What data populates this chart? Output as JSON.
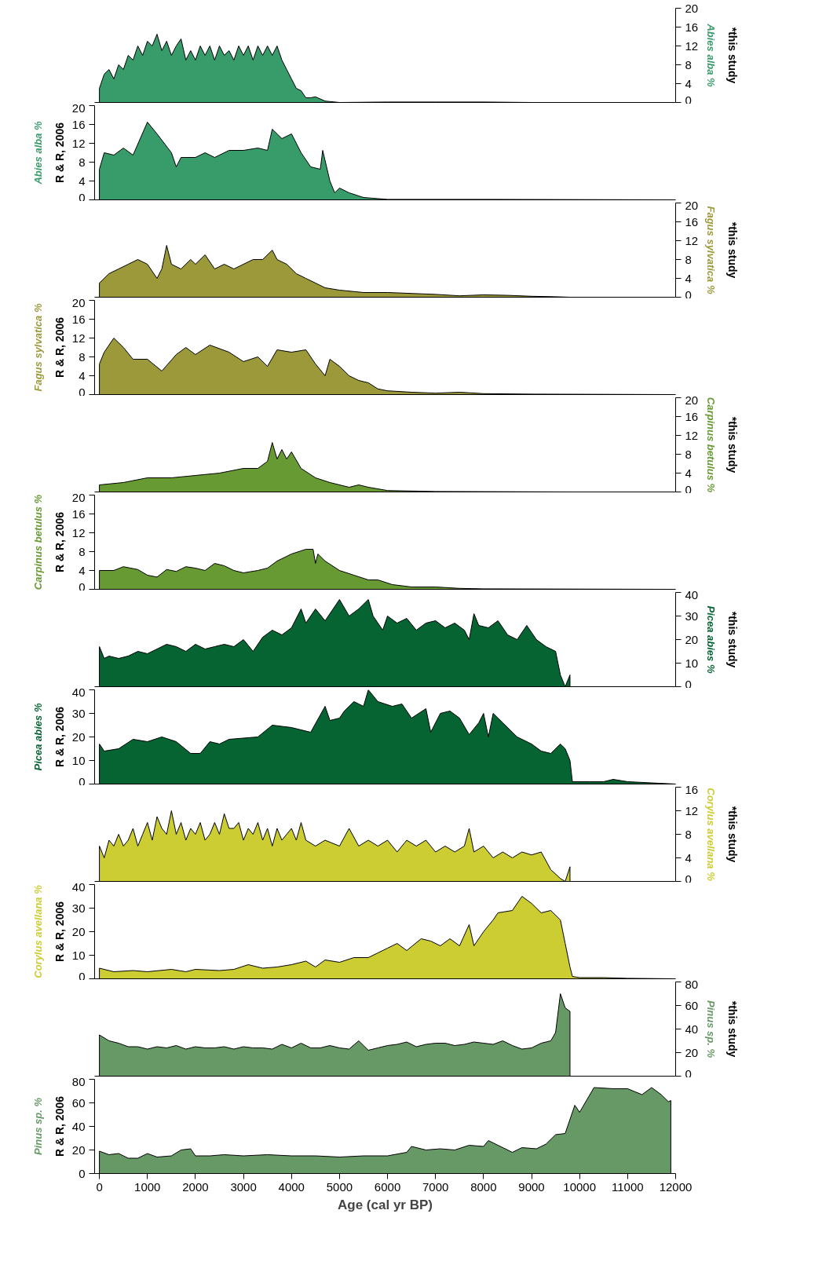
{
  "chart_data": [
    {
      "type": "area",
      "xlim": [
        -100,
        12000
      ],
      "tick_labels": "y",
      "y2lim": [
        0,
        20
      ],
      "y2ticks": [
        0,
        4,
        8,
        12,
        16,
        20
      ],
      "y2label": "Abies alba %",
      "annotations": [
        "*this study"
      ],
      "series": [
        {
          "axis": "y2",
          "color": "#389b6a",
          "x": [
            0,
            100,
            200,
            300,
            400,
            500,
            600,
            700,
            800,
            900,
            1000,
            1100,
            1200,
            1300,
            1400,
            1500,
            1600,
            1700,
            1800,
            1900,
            2000,
            2100,
            2200,
            2300,
            2400,
            2500,
            2600,
            2700,
            2800,
            2900,
            3000,
            3100,
            3200,
            3300,
            3400,
            3500,
            3600,
            3700,
            3800,
            3900,
            4000,
            4100,
            4200,
            4300,
            4400,
            4500,
            4700,
            5000,
            6000,
            7000,
            8000,
            9000,
            9800
          ],
          "values": [
            3,
            6,
            7,
            5,
            8,
            7,
            10,
            9,
            12,
            10,
            13,
            12,
            14.5,
            11,
            13,
            10,
            12,
            13.5,
            9,
            11,
            9,
            12,
            10,
            12,
            9,
            12,
            10,
            11,
            9,
            12,
            10,
            12,
            9,
            12,
            10,
            12,
            10,
            12,
            9,
            7,
            5,
            3,
            2.5,
            1,
            1,
            1.2,
            0.3,
            0,
            0.1,
            0.1,
            0.1,
            0,
            0
          ]
        }
      ]
    },
    {
      "type": "area",
      "xlim": [
        -100,
        12000
      ],
      "tick_labels": "y",
      "ylim": [
        0,
        20
      ],
      "yticks": [
        0,
        4,
        8,
        12,
        16,
        20
      ],
      "ylabel": "Abies alba %",
      "annotations": [
        "R & R, 2006"
      ],
      "series": [
        {
          "color": "#389b6a",
          "x": [
            0,
            100,
            300,
            500,
            700,
            1000,
            1200,
            1500,
            1600,
            1700,
            2000,
            2200,
            2400,
            2700,
            3000,
            3300,
            3500,
            3600,
            3800,
            4000,
            4200,
            4400,
            4600,
            4650,
            4800,
            4900,
            5000,
            5200,
            5500,
            6000,
            8000,
            12000
          ],
          "values": [
            6.5,
            10,
            9.5,
            11,
            9.5,
            16.5,
            14,
            10,
            7,
            9,
            9,
            10,
            9,
            10.5,
            10.5,
            11,
            10.5,
            15,
            13,
            14,
            10,
            7,
            6.5,
            10.5,
            4,
            1.5,
            2.5,
            1.5,
            0.5,
            0.1,
            0.1,
            0
          ]
        }
      ]
    },
    {
      "type": "area",
      "xlim": [
        -100,
        12000
      ],
      "tick_labels": "y",
      "y2lim": [
        0,
        20
      ],
      "y2ticks": [
        0,
        4,
        8,
        12,
        16,
        20
      ],
      "y2label": "Fagus sylvatica %",
      "annotations": [
        "*this study"
      ],
      "series": [
        {
          "axis": "y2",
          "color": "#9b993a",
          "x": [
            0,
            200,
            400,
            600,
            800,
            1000,
            1200,
            1300,
            1400,
            1500,
            1700,
            1900,
            2000,
            2200,
            2400,
            2600,
            2800,
            3000,
            3200,
            3400,
            3600,
            3700,
            3900,
            4100,
            4300,
            4500,
            4700,
            5000,
            5500,
            6000,
            6500,
            7000,
            7500,
            8000,
            8500,
            9000,
            9500,
            9800
          ],
          "values": [
            3,
            5,
            6,
            7,
            8,
            7,
            4,
            6,
            11,
            7,
            6,
            8,
            7,
            9,
            6,
            7,
            6,
            7,
            8,
            8,
            10,
            8,
            7,
            5,
            4,
            3,
            2,
            1.5,
            1,
            1,
            0.8,
            0.6,
            0.3,
            0.5,
            0.4,
            0.2,
            0.1,
            0
          ]
        }
      ]
    },
    {
      "type": "area",
      "xlim": [
        -100,
        12000
      ],
      "tick_labels": "y",
      "ylim": [
        0,
        20
      ],
      "yticks": [
        0,
        4,
        8,
        12,
        16,
        20
      ],
      "ylabel": "Fagus sylvatica %",
      "annotations": [
        "R & R, 2006"
      ],
      "series": [
        {
          "color": "#9b993a",
          "x": [
            0,
            100,
            300,
            500,
            700,
            1000,
            1300,
            1600,
            1800,
            2000,
            2300,
            2700,
            3000,
            3300,
            3500,
            3700,
            4000,
            4300,
            4500,
            4700,
            4800,
            5000,
            5200,
            5400,
            5600,
            5800,
            6000,
            6500,
            7000,
            7500,
            8000,
            9000,
            12000
          ],
          "values": [
            6.5,
            9,
            12,
            10,
            7.5,
            7.5,
            5,
            8.5,
            10,
            8.5,
            10.5,
            9,
            7,
            8,
            6,
            9.5,
            9,
            9.5,
            6.5,
            4,
            7.5,
            6,
            4,
            3,
            2.5,
            1.2,
            0.8,
            0.5,
            0.3,
            0.5,
            0.2,
            0.1,
            0
          ]
        }
      ]
    },
    {
      "type": "area",
      "xlim": [
        -100,
        12000
      ],
      "tick_labels": "y",
      "y2lim": [
        0,
        20
      ],
      "y2ticks": [
        0,
        4,
        8,
        12,
        16,
        20
      ],
      "y2label": "Carpinus betulus %",
      "annotations": [
        "*this study"
      ],
      "series": [
        {
          "axis": "y2",
          "color": "#679a33",
          "x": [
            0,
            500,
            1000,
            1500,
            2000,
            2500,
            3000,
            3300,
            3500,
            3600,
            3700,
            3800,
            3900,
            4000,
            4200,
            4500,
            4800,
            5200,
            5400,
            5600,
            6000,
            7000,
            9800
          ],
          "values": [
            1.5,
            2,
            3,
            3,
            3.5,
            4,
            5,
            5,
            6.5,
            10.5,
            7,
            9,
            7,
            8.5,
            5,
            3,
            2,
            1,
            1.5,
            1,
            0.3,
            0.1,
            0
          ]
        }
      ]
    },
    {
      "type": "area",
      "xlim": [
        -100,
        12000
      ],
      "tick_labels": "y",
      "ylim": [
        0,
        20
      ],
      "yticks": [
        0,
        4,
        8,
        12,
        16,
        20
      ],
      "ylabel": "Carpinus betulus %",
      "annotations": [
        "R & R, 2006"
      ],
      "series": [
        {
          "color": "#679a33",
          "x": [
            0,
            300,
            500,
            800,
            1000,
            1200,
            1400,
            1600,
            1800,
            2000,
            2200,
            2400,
            2600,
            2800,
            3000,
            3300,
            3500,
            3700,
            4000,
            4300,
            4450,
            4500,
            4550,
            4700,
            5000,
            5300,
            5600,
            5800,
            6100,
            6500,
            7000,
            7500,
            8000,
            12000
          ],
          "values": [
            4,
            4,
            4.8,
            4.2,
            3,
            2.6,
            4.2,
            3.8,
            4.8,
            4.5,
            4,
            5.5,
            5,
            4,
            3.5,
            4,
            4.5,
            6,
            7.5,
            8.5,
            8.5,
            5.5,
            7.5,
            6,
            4,
            3,
            2,
            2,
            1,
            0.5,
            0.5,
            0.2,
            0.1,
            0
          ]
        }
      ]
    },
    {
      "type": "area",
      "xlim": [
        -100,
        12000
      ],
      "tick_labels": "y",
      "y2lim": [
        0,
        40
      ],
      "y2ticks": [
        0,
        10,
        20,
        30,
        40
      ],
      "y2label": "Picea abies %",
      "annotations": [
        "*this study"
      ],
      "series": [
        {
          "axis": "y2",
          "color": "#066433",
          "x": [
            0,
            100,
            200,
            400,
            600,
            800,
            1000,
            1200,
            1400,
            1600,
            1800,
            2000,
            2200,
            2400,
            2600,
            2800,
            3000,
            3200,
            3400,
            3600,
            3800,
            4000,
            4200,
            4300,
            4500,
            4700,
            5000,
            5200,
            5400,
            5600,
            5700,
            5900,
            6000,
            6200,
            6400,
            6600,
            6800,
            7000,
            7200,
            7400,
            7600,
            7700,
            7800,
            7900,
            8100,
            8300,
            8500,
            8700,
            8900,
            9100,
            9300,
            9500,
            9600,
            9700,
            9800
          ],
          "values": [
            17,
            12,
            13,
            12,
            13,
            15,
            14,
            16,
            18,
            17,
            15,
            18,
            16,
            17,
            18,
            17,
            20,
            15,
            21,
            24,
            22,
            25,
            33,
            27,
            33,
            28,
            37,
            30,
            33,
            37,
            30,
            24,
            30,
            27,
            29,
            24,
            27,
            28,
            25,
            27,
            24,
            20,
            31,
            26,
            25,
            28,
            22,
            20,
            26,
            20,
            17,
            15,
            5,
            0,
            5
          ]
        }
      ]
    },
    {
      "type": "area",
      "xlim": [
        -100,
        12000
      ],
      "tick_labels": "y",
      "ylim": [
        0,
        40
      ],
      "yticks": [
        0,
        10,
        20,
        30,
        40
      ],
      "ylabel": "Picea abies %",
      "annotations": [
        "R & R, 2006"
      ],
      "series": [
        {
          "color": "#066433",
          "x": [
            0,
            100,
            400,
            700,
            1000,
            1300,
            1600,
            1900,
            2100,
            2300,
            2500,
            2700,
            3000,
            3300,
            3600,
            4000,
            4400,
            4700,
            4800,
            5000,
            5100,
            5300,
            5500,
            5600,
            5800,
            6100,
            6300,
            6500,
            6800,
            6900,
            7100,
            7300,
            7500,
            7700,
            7900,
            8000,
            8100,
            8200,
            8400,
            8700,
            9000,
            9200,
            9400,
            9600,
            9700,
            9800,
            9850,
            10200,
            10500,
            10700,
            11000,
            11500,
            12000
          ],
          "values": [
            17,
            14,
            15,
            19,
            18,
            20,
            18,
            13,
            13,
            18,
            17,
            19,
            19.5,
            20,
            25,
            24,
            22,
            33,
            27,
            28,
            31,
            35,
            33,
            40,
            35,
            33,
            34,
            28,
            32,
            22,
            30,
            31,
            28,
            21,
            26,
            30,
            20,
            30,
            26,
            20,
            17,
            14,
            13,
            17,
            15,
            10,
            1,
            1,
            1,
            2,
            1,
            0.5,
            0
          ]
        }
      ]
    },
    {
      "type": "area",
      "xlim": [
        -100,
        12000
      ],
      "tick_labels": "y",
      "y2lim": [
        0,
        16
      ],
      "y2ticks": [
        0,
        4,
        8,
        12,
        16
      ],
      "y2label": "Corylus avellana %",
      "annotations": [
        "*this study"
      ],
      "series": [
        {
          "axis": "y2",
          "color": "#cccc33",
          "x": [
            0,
            100,
            200,
            300,
            400,
            500,
            600,
            700,
            800,
            900,
            1000,
            1100,
            1200,
            1300,
            1400,
            1500,
            1600,
            1700,
            1800,
            1900,
            2000,
            2100,
            2200,
            2300,
            2400,
            2500,
            2600,
            2700,
            2800,
            2900,
            3000,
            3100,
            3200,
            3300,
            3400,
            3500,
            3600,
            3700,
            3800,
            3900,
            4000,
            4100,
            4200,
            4300,
            4500,
            4700,
            5000,
            5200,
            5400,
            5600,
            5800,
            6000,
            6200,
            6400,
            6600,
            6800,
            7000,
            7200,
            7400,
            7600,
            7700,
            7800,
            8000,
            8200,
            8400,
            8600,
            8800,
            9000,
            9200,
            9400,
            9600,
            9700,
            9800
          ],
          "values": [
            6,
            4,
            7,
            6,
            8,
            6,
            7,
            9,
            6,
            8,
            10,
            7,
            11,
            9,
            8,
            12,
            8,
            10,
            7,
            9,
            8,
            10,
            7,
            8,
            10,
            8,
            11.5,
            9,
            9,
            10,
            7,
            9,
            8,
            10,
            7,
            9,
            6,
            9,
            7,
            8,
            9,
            7,
            10,
            7,
            6,
            7,
            6,
            9,
            6,
            7,
            6,
            7,
            5,
            7,
            6,
            7,
            5,
            6,
            5,
            6,
            9,
            5,
            6,
            4,
            5,
            4,
            5,
            4.5,
            5,
            2,
            0.5,
            0,
            2.5
          ]
        }
      ]
    },
    {
      "type": "area",
      "xlim": [
        -100,
        12000
      ],
      "tick_labels": "y",
      "ylim": [
        0,
        40
      ],
      "yticks": [
        0,
        10,
        20,
        30,
        40
      ],
      "ylabel": "Corylus avellana %",
      "annotations": [
        "R & R, 2006"
      ],
      "series": [
        {
          "color": "#cccc33",
          "x": [
            0,
            300,
            700,
            1000,
            1500,
            1800,
            2000,
            2500,
            2800,
            3100,
            3400,
            3700,
            4000,
            4300,
            4500,
            4700,
            5000,
            5300,
            5600,
            5800,
            6000,
            6200,
            6400,
            6700,
            6900,
            7100,
            7300,
            7500,
            7700,
            7800,
            8000,
            8200,
            8300,
            8600,
            8800,
            9000,
            9200,
            9400,
            9600,
            9700,
            9800,
            9850,
            10000,
            10500,
            11000,
            12000
          ],
          "values": [
            4.5,
            3,
            3.5,
            3,
            4,
            3,
            4,
            3.5,
            4,
            6,
            4.5,
            5,
            6,
            7.5,
            5,
            8,
            7,
            9,
            9,
            11,
            13,
            15,
            12,
            17,
            16,
            14,
            17,
            14,
            23,
            14,
            20,
            25,
            28,
            29,
            35,
            32,
            28,
            29,
            25,
            15,
            5,
            1,
            0.5,
            0.5,
            0.2,
            0
          ]
        }
      ]
    },
    {
      "type": "area",
      "xlim": [
        -100,
        12000
      ],
      "tick_labels": "y",
      "y2lim": [
        0,
        80
      ],
      "y2ticks": [
        0,
        20,
        40,
        60,
        80
      ],
      "y2label": "Pinus sp. %",
      "annotations": [
        "*this study"
      ],
      "series": [
        {
          "axis": "y2",
          "color": "#669966",
          "x": [
            0,
            200,
            400,
            600,
            800,
            1000,
            1200,
            1400,
            1600,
            1800,
            2000,
            2200,
            2400,
            2600,
            2800,
            3000,
            3200,
            3400,
            3600,
            3800,
            4000,
            4200,
            4400,
            4600,
            4800,
            5000,
            5200,
            5400,
            5600,
            5800,
            6000,
            6200,
            6400,
            6600,
            6800,
            7000,
            7200,
            7400,
            7600,
            7800,
            8000,
            8200,
            8400,
            8600,
            8800,
            9000,
            9200,
            9400,
            9500,
            9600,
            9700,
            9800
          ],
          "values": [
            35,
            30,
            28,
            25,
            25,
            23,
            25,
            24,
            26,
            23,
            25,
            24,
            24,
            25,
            23,
            25,
            24,
            24,
            23,
            27,
            24,
            28,
            24,
            24,
            26,
            24,
            23,
            30,
            22,
            24,
            26,
            27,
            29,
            25,
            27,
            28,
            28,
            26,
            27,
            29,
            28,
            27,
            30,
            26,
            23,
            24,
            28,
            30,
            37,
            70,
            58,
            55
          ]
        }
      ]
    },
    {
      "type": "area",
      "xlim": [
        -100,
        12000
      ],
      "xticks": [
        0,
        1000,
        2000,
        3000,
        4000,
        5000,
        6000,
        7000,
        8000,
        9000,
        10000,
        11000,
        12000
      ],
      "xlabel": "Age (cal yr BP)",
      "ylim": [
        0,
        80
      ],
      "yticks": [
        0,
        20,
        40,
        60,
        80
      ],
      "ylabel": "Pinus sp. %",
      "annotations": [
        "R & R, 2006"
      ],
      "series": [
        {
          "color": "#669966",
          "x": [
            0,
            200,
            400,
            600,
            800,
            1000,
            1200,
            1500,
            1700,
            1900,
            2000,
            2300,
            2600,
            3000,
            3500,
            4000,
            4500,
            5000,
            5500,
            6000,
            6400,
            6500,
            6800,
            7100,
            7400,
            7700,
            8000,
            8100,
            8300,
            8600,
            8800,
            9100,
            9300,
            9500,
            9700,
            9900,
            10000,
            10300,
            10700,
            11000,
            11300,
            11500,
            11700,
            11850,
            11900
          ],
          "values": [
            19,
            16,
            17,
            13,
            13,
            17,
            14,
            15,
            20,
            21,
            15,
            15,
            16,
            15,
            16,
            15,
            15,
            14,
            15,
            15,
            18,
            23,
            20,
            21,
            20,
            24,
            23,
            28,
            24,
            18,
            22,
            21,
            25,
            33,
            34,
            58,
            52,
            73,
            72,
            72,
            67,
            73,
            67,
            61,
            62
          ]
        }
      ]
    }
  ]
}
